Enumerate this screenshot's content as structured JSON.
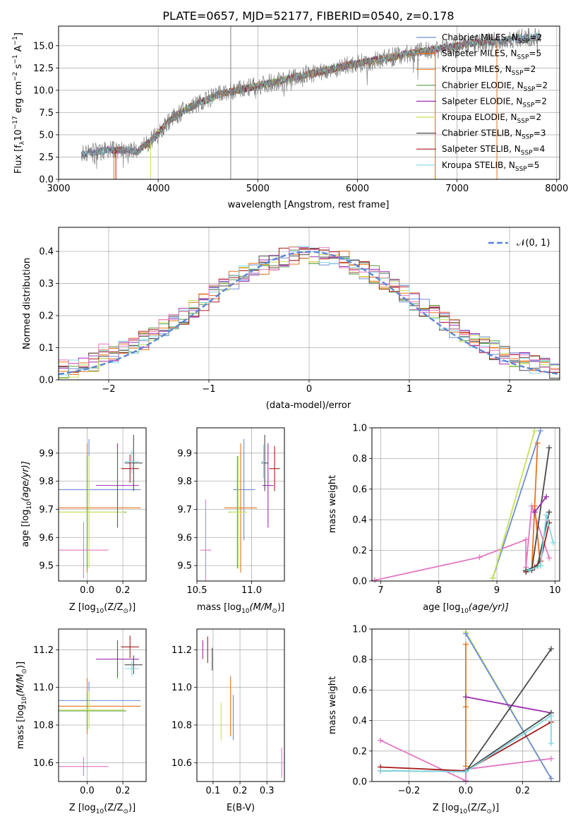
{
  "figure_title": "PLATE=0657, MJD=52177, FIBERID=0540, z=0.178",
  "palette": {
    "Chabrier MILES": "#6d8fd4",
    "Salpeter MILES": "#e8741a",
    "Kroupa MILES": "#e8741a",
    "Chabrier ELODIE": "#5aa046",
    "Salpeter ELODIE": "#9d2bb0",
    "Kroupa ELODIE": "#c6e25a",
    "Chabrier STELIB": "#4a4a4a",
    "Salpeter STELIB": "#a51c1c",
    "Kroupa STELIB": "#7fd8e2",
    "data": "#7f7f7f",
    "pink": "#e377c2",
    "normal": "#5b86d6"
  },
  "chart_data": [
    {
      "type": "line",
      "panel": "spectrum",
      "title": "PLATE=0657, MJD=52177, FIBERID=0540, z=0.178",
      "xlabel": "wavelength [Angstrom, rest frame]",
      "ylabel_main": "Flux [f",
      "ylabel_sub": "λ",
      "ylabel_mid": "10",
      "ylabel_exp1": "−17",
      "ylabel_tail": " erg cm",
      "ylabel_exp2": "−2",
      "ylabel_s": " s",
      "ylabel_exp3": "−1",
      "ylabel_A": " A",
      "ylabel_exp4": "−1",
      "ylabel_end": "]",
      "xlim": [
        3000,
        8030
      ],
      "ylim": [
        0,
        17.2
      ],
      "xticks": [
        "3000",
        "4000",
        "5000",
        "6000",
        "7000",
        "8000"
      ],
      "yticks": [
        "0.0",
        "2.5",
        "5.0",
        "7.5",
        "10.0",
        "12.5",
        "15.0"
      ],
      "xtick_values": [
        3000,
        4000,
        5000,
        6000,
        7000,
        8000
      ],
      "ytick_values": [
        0,
        2.5,
        5,
        7.5,
        10,
        12.5,
        15
      ],
      "continuum": [
        [
          3230,
          2.8
        ],
        [
          3500,
          3.3
        ],
        [
          3800,
          3.2
        ],
        [
          3950,
          4.5
        ],
        [
          4100,
          6.5
        ],
        [
          4300,
          8.0
        ],
        [
          4600,
          9.5
        ],
        [
          5000,
          10.5
        ],
        [
          5300,
          11.3
        ],
        [
          5600,
          12.0
        ],
        [
          5900,
          12.8
        ],
        [
          6200,
          13.4
        ],
        [
          6500,
          14.1
        ],
        [
          6800,
          14.6
        ],
        [
          7100,
          15.2
        ],
        [
          7400,
          15.5
        ],
        [
          7700,
          15.9
        ],
        [
          7840,
          16.0
        ]
      ],
      "legend": [
        {
          "name": "Chabrier MILES",
          "nssp": "=2"
        },
        {
          "name": "Salpeter MILES",
          "nssp": "=5"
        },
        {
          "name": "Kroupa MILES",
          "nssp": "=2"
        },
        {
          "name": "Chabrier ELODIE",
          "nssp": "=2"
        },
        {
          "name": "Salpeter ELODIE",
          "nssp": "=2"
        },
        {
          "name": "Kroupa ELODIE",
          "nssp": "=2"
        },
        {
          "name": "Chabrier STELIB",
          "nssp": "=3"
        },
        {
          "name": "Salpeter STELIB",
          "nssp": "=4"
        },
        {
          "name": "Kroupa STELIB",
          "nssp": "=5"
        }
      ],
      "legend_nssp_label": "N",
      "legend_nssp_sub": "SSP"
    },
    {
      "type": "histogram",
      "panel": "residuals",
      "xlabel": "(data-model)/error",
      "ylabel": "Normed distribution",
      "xlim": [
        -2.5,
        2.5
      ],
      "ylim": [
        0,
        0.475
      ],
      "xticks": [
        "−2",
        "−1",
        "0",
        "1",
        "2"
      ],
      "yticks": [
        "0.0",
        "0.1",
        "0.2",
        "0.3",
        "0.4"
      ],
      "xtick_values": [
        -2,
        -1,
        0,
        1,
        2
      ],
      "ytick_values": [
        0,
        0.1,
        0.2,
        0.3,
        0.4
      ],
      "legend_label": "𝒩(0, 1)",
      "bin_width": 0.1
    },
    {
      "type": "errorbar",
      "panel": "Z-age",
      "xlabel": "Z [log",
      "xlabel_sub": "10",
      "xlabel_tail": "(Z/Z",
      "xlabel_sun": "⊙",
      "xlabel_end": ")]",
      "ylabel": "age  [log",
      "ylabel_sub": "10",
      "ylabel_tail": "(age/yr)]",
      "xlim": [
        -0.16,
        0.33
      ],
      "ylim": [
        9.445,
        9.99
      ],
      "xticks": [
        "0.0",
        "0.2"
      ],
      "yticks": [
        "9.5",
        "9.6",
        "9.7",
        "9.8",
        "9.9"
      ],
      "xtick_values": [
        0,
        0.2
      ],
      "ytick_values": [
        9.5,
        9.6,
        9.7,
        9.8,
        9.9
      ],
      "points": [
        {
          "model": "Chabrier MILES",
          "x": 0.01,
          "y": 9.77,
          "xerr": 0.29,
          "yerr": 0.18
        },
        {
          "model": "Salpeter MILES",
          "x": 0.0,
          "y": 9.705,
          "xerr": 0.3,
          "yerr": 0.23
        },
        {
          "model": "Chabrier ELODIE",
          "x": 0.0,
          "y": 9.69,
          "xerr": 0.22,
          "yerr": 0.2
        },
        {
          "model": "Kroupa ELODIE",
          "x": 0.01,
          "y": 9.69,
          "xerr": 0.2,
          "yerr": 0.2
        },
        {
          "model": "Salpeter ELODIE",
          "x": 0.17,
          "y": 9.785,
          "xerr": 0.12,
          "yerr": 0.15
        },
        {
          "model": "Chabrier STELIB",
          "x": 0.26,
          "y": 9.865,
          "xerr": 0.05,
          "yerr": 0.1
        },
        {
          "model": "Salpeter STELIB",
          "x": 0.24,
          "y": 9.845,
          "xerr": 0.05,
          "yerr": 0.05
        },
        {
          "model": "Kroupa STELIB",
          "x": 0.25,
          "y": 9.87,
          "xerr": 0.04,
          "yerr": 0.04
        },
        {
          "model": "pink",
          "x": -0.02,
          "y": 9.555,
          "xerr": 0.14,
          "yerr": 0.1
        }
      ]
    },
    {
      "type": "errorbar",
      "panel": "mass-age",
      "xlabel": "mass [log",
      "xlabel_sub": "10",
      "xlabel_tail": "(M/M",
      "xlabel_sun": "⊙",
      "xlabel_end": ")]",
      "xlim": [
        10.5,
        11.3
      ],
      "ylim": [
        9.445,
        9.99
      ],
      "xticks": [
        "10.5",
        "11.0"
      ],
      "yticks": [
        "9.5",
        "9.6",
        "9.7",
        "9.8",
        "9.9"
      ],
      "xtick_values": [
        10.5,
        11.0
      ],
      "ytick_values": [
        9.5,
        9.6,
        9.7,
        9.8,
        9.9
      ],
      "points": [
        {
          "model": "Chabrier MILES",
          "x": 10.93,
          "y": 9.77,
          "xerr": 0.1,
          "yerr": 0.18
        },
        {
          "model": "Salpeter MILES",
          "x": 10.9,
          "y": 9.705,
          "xerr": 0.15,
          "yerr": 0.23
        },
        {
          "model": "Chabrier ELODIE",
          "x": 10.87,
          "y": 9.69,
          "xerr": 0.08,
          "yerr": 0.2
        },
        {
          "model": "Kroupa ELODIE",
          "x": 10.88,
          "y": 9.69,
          "xerr": 0.08,
          "yerr": 0.2
        },
        {
          "model": "Salpeter ELODIE",
          "x": 11.15,
          "y": 9.785,
          "xerr": 0.05,
          "yerr": 0.15
        },
        {
          "model": "Chabrier STELIB",
          "x": 11.12,
          "y": 9.865,
          "xerr": 0.03,
          "yerr": 0.1
        },
        {
          "model": "Salpeter STELIB",
          "x": 11.21,
          "y": 9.845,
          "xerr": 0.05,
          "yerr": 0.08
        },
        {
          "model": "Kroupa STELIB",
          "x": 11.11,
          "y": 9.87,
          "xerr": 0.02,
          "yerr": 0.06
        },
        {
          "model": "pink",
          "x": 10.58,
          "y": 9.555,
          "xerr": 0.05,
          "yerr": 0.18
        }
      ]
    },
    {
      "type": "line",
      "panel": "age-mass-weight",
      "xlabel": "age  [log",
      "xlabel_sub": "10",
      "xlabel_tail": "(age/yr)]",
      "ylabel": "mass weight",
      "xlim": [
        6.85,
        10.08
      ],
      "ylim": [
        0,
        1.0
      ],
      "xticks": [
        "7",
        "8",
        "9",
        "10"
      ],
      "yticks": [
        "0.0",
        "0.2",
        "0.4",
        "0.6",
        "0.8",
        "1.0"
      ],
      "xtick_values": [
        7,
        8,
        9,
        10
      ],
      "ytick_values": [
        0,
        0.2,
        0.4,
        0.6,
        0.8,
        1.0
      ],
      "series": [
        {
          "model": "pink",
          "x": [
            6.9,
            8.7,
            9.5,
            9.5,
            9.6,
            9.9
          ],
          "y": [
            0.005,
            0.155,
            0.27,
            0.09,
            0.49,
            0.15
          ]
        },
        {
          "model": "Chabrier MILES",
          "x": [
            8.93,
            9.75
          ],
          "y": [
            0.02,
            0.98
          ]
        },
        {
          "model": "Kroupa ELODIE",
          "x": [
            8.93,
            9.65
          ],
          "y": [
            0.02,
            0.98
          ]
        },
        {
          "model": "Salpeter MILES",
          "x": [
            9.5,
            9.6,
            9.7,
            9.65,
            9.75
          ],
          "y": [
            0.07,
            0.08,
            0.9,
            0.49,
            0.1
          ]
        },
        {
          "model": "Chabrier STELIB",
          "x": [
            9.5,
            9.6,
            9.9
          ],
          "y": [
            0.06,
            0.07,
            0.87
          ]
        },
        {
          "model": "Salpeter ELODIE",
          "x": [
            9.65,
            9.85
          ],
          "y": [
            0.45,
            0.55
          ]
        },
        {
          "model": "Salpeter STELIB",
          "x": [
            9.5,
            9.65,
            9.75,
            9.9
          ],
          "y": [
            0.06,
            0.09,
            0.13,
            0.38
          ]
        },
        {
          "model": "Chabrier STELIB",
          "x": [
            9.5,
            9.7,
            9.9
          ],
          "y": [
            0.07,
            0.1,
            0.45
          ]
        },
        {
          "model": "Kroupa STELIB",
          "x": [
            9.55,
            9.75,
            9.85,
            9.97
          ],
          "y": [
            0.07,
            0.1,
            0.43,
            0.25
          ]
        }
      ]
    },
    {
      "type": "errorbar",
      "panel": "Z-mass",
      "xlabel": "Z [log",
      "xlabel_sub": "10",
      "xlabel_tail": "(Z/Z",
      "xlabel_sun": "⊙",
      "xlabel_end": ")]",
      "ylabel": "mass [log",
      "ylabel_sub": "10",
      "ylabel_tail": "(M/M",
      "ylabel_sun": "⊙",
      "ylabel_end": ")]",
      "xlim": [
        -0.16,
        0.33
      ],
      "ylim": [
        10.5,
        11.31
      ],
      "xticks": [
        "0.0",
        "0.2"
      ],
      "yticks": [
        "10.6",
        "10.8",
        "11.0",
        "11.2"
      ],
      "xtick_values": [
        0,
        0.2
      ],
      "ytick_values": [
        10.6,
        10.8,
        11.0,
        11.2
      ],
      "points": [
        {
          "model": "Chabrier MILES",
          "x": 0.01,
          "y": 10.93,
          "xerr": 0.29,
          "yerr": 0.1
        },
        {
          "model": "Salpeter MILES",
          "x": 0.0,
          "y": 10.9,
          "xerr": 0.3,
          "yerr": 0.15
        },
        {
          "model": "Chabrier ELODIE",
          "x": 0.0,
          "y": 10.875,
          "xerr": 0.22,
          "yerr": 0.1
        },
        {
          "model": "Kroupa ELODIE",
          "x": 0.01,
          "y": 10.88,
          "xerr": 0.2,
          "yerr": 0.1
        },
        {
          "model": "Salpeter ELODIE",
          "x": 0.17,
          "y": 11.15,
          "xerr": 0.12,
          "yerr": 0.1
        },
        {
          "model": "Chabrier STELIB",
          "x": 0.26,
          "y": 11.12,
          "xerr": 0.05,
          "yerr": 0.05
        },
        {
          "model": "Salpeter STELIB",
          "x": 0.24,
          "y": 11.215,
          "xerr": 0.05,
          "yerr": 0.06
        },
        {
          "model": "Kroupa STELIB",
          "x": 0.25,
          "y": 11.1,
          "xerr": 0.04,
          "yerr": 0.04
        },
        {
          "model": "pink",
          "x": -0.02,
          "y": 10.58,
          "xerr": 0.14,
          "yerr": 0.05
        }
      ]
    },
    {
      "type": "errorbar",
      "panel": "ebv-mass",
      "xlabel": "E(B-V)",
      "xlim": [
        0.04,
        0.365
      ],
      "ylim": [
        10.5,
        11.31
      ],
      "xticks": [
        "0.1",
        "0.2",
        "0.3"
      ],
      "yticks": [
        "10.6",
        "10.8",
        "11.0",
        "11.2"
      ],
      "xtick_values": [
        0.1,
        0.2,
        0.3
      ],
      "ytick_values": [
        10.6,
        10.8,
        11.0,
        11.2
      ],
      "points": [
        {
          "model": "Salpeter ELODIE",
          "x": 0.062,
          "y": 11.2,
          "xerr": 0,
          "yerr": 0.05
        },
        {
          "model": "Salpeter STELIB",
          "x": 0.08,
          "y": 11.2,
          "xerr": 0,
          "yerr": 0.07
        },
        {
          "model": "Chabrier STELIB",
          "x": 0.097,
          "y": 11.15,
          "xerr": 0,
          "yerr": 0.06
        },
        {
          "model": "Kroupa ELODIE",
          "x": 0.13,
          "y": 10.82,
          "xerr": 0,
          "yerr": 0.1
        },
        {
          "model": "Salpeter MILES",
          "x": 0.165,
          "y": 10.9,
          "xerr": 0,
          "yerr": 0.16
        },
        {
          "model": "Chabrier MILES",
          "x": 0.175,
          "y": 10.84,
          "xerr": 0,
          "yerr": 0.12
        },
        {
          "model": "pink",
          "x": 0.355,
          "y": 10.6,
          "xerr": 0,
          "yerr": 0.08
        }
      ]
    },
    {
      "type": "line",
      "panel": "Z-mass-weight",
      "xlabel": "Z [log",
      "xlabel_sub": "10",
      "xlabel_tail": "(Z/Z",
      "xlabel_sun": "⊙",
      "xlabel_end": ")]",
      "ylabel": "mass weight",
      "xlim": [
        -0.33,
        0.33
      ],
      "ylim": [
        0,
        1.0
      ],
      "xticks": [
        "−0.2",
        "0.0",
        "0.2"
      ],
      "yticks": [
        "0.0",
        "0.2",
        "0.4",
        "0.6",
        "0.8",
        "1.0"
      ],
      "xtick_values": [
        -0.2,
        0,
        0.2
      ],
      "ytick_values": [
        0,
        0.2,
        0.4,
        0.6,
        0.8,
        1.0
      ],
      "series": [
        {
          "model": "pink",
          "x": [
            -0.3,
            0.0,
            0.0,
            0.3
          ],
          "y": [
            0.27,
            0.005,
            0.08,
            0.15
          ]
        },
        {
          "model": "Salpeter MILES",
          "x": [
            0.0,
            0.0,
            0.0
          ],
          "y": [
            0.1,
            0.49,
            0.9
          ]
        },
        {
          "model": "Kroupa ELODIE",
          "x": [
            0.0,
            0.3
          ],
          "y": [
            0.98,
            0.02
          ]
        },
        {
          "model": "Chabrier MILES",
          "x": [
            0.0,
            0.3
          ],
          "y": [
            0.97,
            0.02
          ]
        },
        {
          "model": "Salpeter ELODIE",
          "x": [
            0.0,
            0.3
          ],
          "y": [
            0.555,
            0.45
          ]
        },
        {
          "model": "Chabrier STELIB",
          "x": [
            -0.3,
            0.0,
            0.3
          ],
          "y": [
            0.07,
            0.065,
            0.87
          ]
        },
        {
          "model": "Salpeter STELIB",
          "x": [
            -0.3,
            0.0,
            0.3
          ],
          "y": [
            0.095,
            0.07,
            0.39
          ]
        },
        {
          "model": "Chabrier STELIB",
          "x": [
            0.0,
            0.3
          ],
          "y": [
            0.07,
            0.45
          ]
        },
        {
          "model": "Kroupa STELIB",
          "x": [
            -0.3,
            0.0,
            0.3,
            0.3
          ],
          "y": [
            0.07,
            0.065,
            0.43,
            0.25
          ]
        }
      ]
    }
  ]
}
